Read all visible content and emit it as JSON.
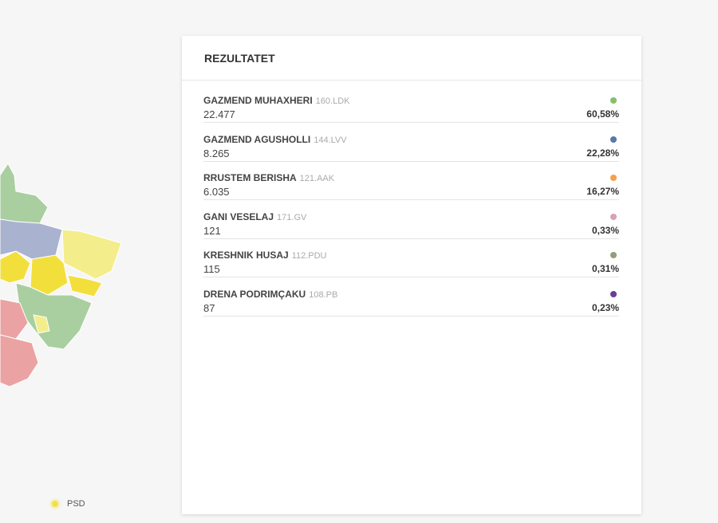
{
  "panel": {
    "title": "REZULTATET",
    "candidates": [
      {
        "name": "GAZMEND MUHAXHERI",
        "code": "160.LDK",
        "votes": "22.477",
        "percent": "60,58%",
        "color": "#86bf6b"
      },
      {
        "name": "GAZMEND AGUSHOLLI",
        "code": "144.LVV",
        "votes": "8.265",
        "percent": "22,28%",
        "color": "#5a77a8"
      },
      {
        "name": "RRUSTEM BERISHA",
        "code": "121.AAK",
        "votes": "6.035",
        "percent": "16,27%",
        "color": "#f5a04c"
      },
      {
        "name": "GANI VESELAJ",
        "code": "171.GV",
        "votes": "121",
        "percent": "0,33%",
        "color": "#d8a2b0"
      },
      {
        "name": "KRESHNIK HUSAJ",
        "code": "112.PDU",
        "votes": "115",
        "percent": "0,31%",
        "color": "#8f9f78"
      },
      {
        "name": "DRENA PODRIMÇAKU",
        "code": "108.PB",
        "votes": "87",
        "percent": "0,23%",
        "color": "#6a3d9a"
      }
    ]
  },
  "legend": {
    "label": "PSD"
  }
}
